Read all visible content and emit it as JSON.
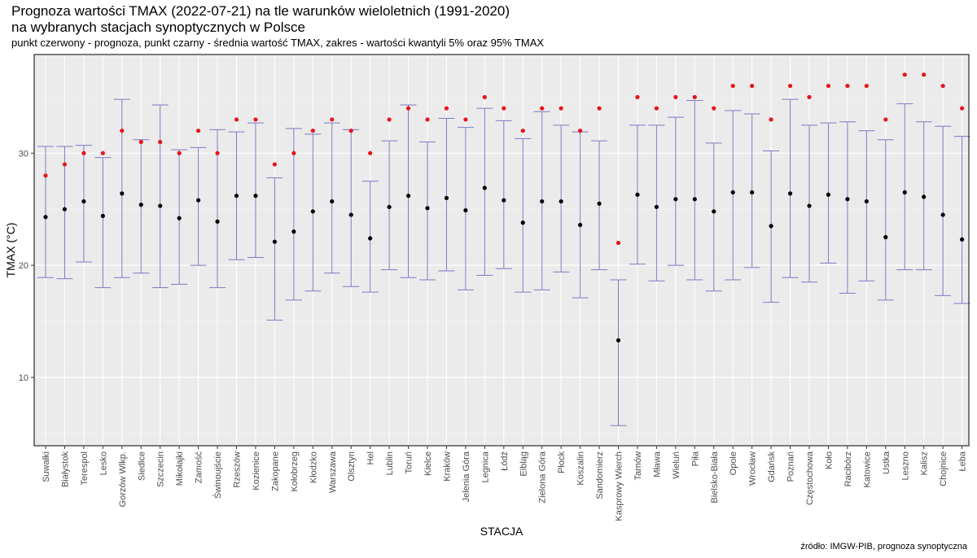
{
  "chart_data": {
    "type": "errorbar",
    "title": "Prognoza wartości TMAX (2022-07-21) na tle warunków wieloletnich (1991-2020)",
    "title_line2": "na wybranych stacjach synoptycznych w Polsce",
    "subtitle": "punkt czerwony - prognoza, punkt czarny - średnia wartość TMAX, zakres - wartości kwantyli 5% oraz 95% TMAX",
    "xlabel": "STACJA",
    "ylabel": "TMAX (°C)",
    "caption": "źródło: IMGW-PIB, prognoza synoptyczna",
    "ylim": [
      3.9,
      38.8
    ],
    "yticks": [
      10,
      20,
      30
    ],
    "grid": true,
    "colors": {
      "panel": "#ebebeb",
      "grid_major": "#ffffff",
      "errorbar": "#7b7bc4",
      "mean": "#000000",
      "forecast": "#e8141b"
    },
    "categories": [
      "Suwałki",
      "Białystok",
      "Terespol",
      "Lesko",
      "Gorzów Wlkp.",
      "Siedlce",
      "Szczecin",
      "Mikołajki",
      "Zamość",
      "Świnoujście",
      "Rzeszów",
      "Kozienice",
      "Zakopane",
      "Kołobrzeg",
      "Kłodzko",
      "Warszawa",
      "Olsztyn",
      "Hel",
      "Lublin",
      "Toruń",
      "Kielce",
      "Kraków",
      "Jelenia Góra",
      "Legnica",
      "Łódź",
      "Elbląg",
      "Zielona Góra",
      "Płock",
      "Koszalin",
      "Sandomierz",
      "Kasprowy Wierch",
      "Tarnów",
      "Mława",
      "Wieluń",
      "Piła",
      "Bielsko-Biała",
      "Opole",
      "Wrocław",
      "Gdańsk",
      "Poznań",
      "Częstochowa",
      "Koło",
      "Racibórz",
      "Katowice",
      "Ustka",
      "Leszno",
      "Kalisz",
      "Chojnice",
      "Łeba"
    ],
    "series": [
      {
        "name": "q5",
        "values": [
          18.9,
          18.8,
          20.3,
          18.0,
          18.9,
          19.3,
          18.0,
          18.3,
          20.0,
          18.0,
          20.5,
          20.7,
          15.1,
          16.9,
          17.7,
          19.3,
          18.1,
          17.6,
          19.6,
          18.9,
          18.7,
          19.5,
          17.8,
          19.1,
          19.7,
          17.6,
          17.8,
          19.4,
          17.1,
          19.6,
          5.7,
          20.1,
          18.6,
          20.0,
          18.7,
          17.7,
          18.7,
          19.8,
          16.7,
          18.9,
          18.5,
          20.2,
          17.5,
          18.6,
          16.9,
          19.6,
          19.6,
          17.3,
          16.6
        ]
      },
      {
        "name": "q95",
        "values": [
          30.6,
          30.6,
          30.7,
          29.6,
          34.8,
          31.2,
          34.3,
          30.3,
          30.5,
          32.1,
          31.9,
          32.7,
          27.8,
          32.2,
          31.7,
          32.7,
          32.1,
          27.5,
          31.1,
          34.3,
          31.0,
          33.1,
          32.3,
          34.0,
          32.9,
          31.3,
          33.7,
          32.5,
          31.9,
          31.1,
          18.7,
          32.5,
          32.5,
          33.2,
          34.7,
          30.9,
          33.8,
          33.5,
          30.2,
          34.8,
          32.5,
          32.7,
          32.8,
          32.0,
          31.2,
          34.4,
          32.8,
          32.4,
          31.5
        ]
      },
      {
        "name": "mean",
        "values": [
          24.3,
          25.0,
          25.7,
          24.4,
          26.4,
          25.4,
          25.3,
          24.2,
          25.8,
          23.9,
          26.2,
          26.2,
          22.1,
          23.0,
          24.8,
          25.7,
          24.5,
          22.4,
          25.2,
          26.2,
          25.1,
          26.0,
          24.9,
          26.9,
          25.8,
          23.8,
          25.7,
          25.7,
          23.6,
          25.5,
          13.3,
          26.3,
          25.2,
          25.9,
          25.9,
          24.8,
          26.5,
          26.5,
          23.5,
          26.4,
          25.3,
          26.3,
          25.9,
          25.7,
          22.5,
          26.5,
          26.1,
          24.5,
          22.3
        ]
      },
      {
        "name": "forecast",
        "values": [
          28,
          29,
          30,
          30,
          32,
          31,
          31,
          30,
          32,
          30,
          33,
          33,
          29,
          30,
          32,
          33,
          32,
          30,
          33,
          34,
          33,
          34,
          33,
          35,
          34,
          32,
          34,
          34,
          32,
          34,
          22,
          35,
          34,
          35,
          35,
          34,
          36,
          36,
          33,
          36,
          35,
          36,
          36,
          36,
          33,
          37,
          37,
          36,
          34
        ]
      }
    ]
  }
}
